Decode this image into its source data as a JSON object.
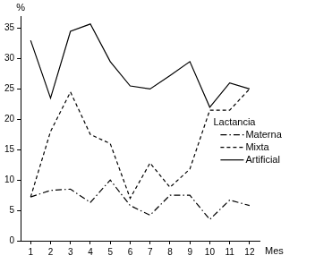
{
  "chart_data": {
    "type": "line",
    "y_label": "%",
    "x_label": "Mes",
    "legend_title": "Lactancia",
    "categories": [
      "1",
      "2",
      "3",
      "4",
      "5",
      "6",
      "7",
      "8",
      "9",
      "10",
      "11",
      "12"
    ],
    "series": [
      {
        "name": "Materna",
        "color": "#000000",
        "line_style": "dashdot",
        "values": [
          7.2,
          8.3,
          8.5,
          6.3,
          10,
          5.8,
          4.2,
          7.5,
          7.5,
          3.5,
          6.7,
          5.8
        ]
      },
      {
        "name": "Mixta",
        "color": "#000000",
        "line_style": "dashed",
        "values": [
          7.2,
          18,
          24.5,
          17.5,
          16,
          7,
          12.8,
          8.8,
          11.8,
          21.5,
          21.5,
          25
        ]
      },
      {
        "name": "Artificial",
        "color": "#000000",
        "line_style": "solid",
        "values": [
          33,
          23.5,
          34.5,
          35.7,
          29.5,
          25.5,
          25,
          27.2,
          29.5,
          22,
          26,
          25
        ]
      }
    ],
    "ylim": [
      0,
      37
    ],
    "yticks": [
      0,
      5,
      10,
      15,
      20,
      25,
      30,
      35
    ],
    "grid": false,
    "legend": "right"
  }
}
